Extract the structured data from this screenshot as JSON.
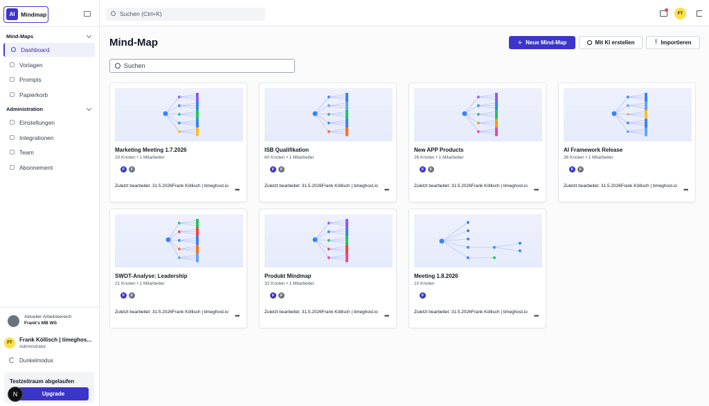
{
  "sidebar": {
    "logo": "AI",
    "app_name": "Mindmap",
    "sections": [
      {
        "title": "Mind-Maps",
        "items": [
          "Dashboard",
          "Vorlagen",
          "Prompts",
          "Papierkorb"
        ]
      },
      {
        "title": "Administration",
        "items": [
          "Einstellungen",
          "Integrationen",
          "Team",
          "Abonnement"
        ]
      }
    ],
    "workspace_label": "Aktueller Arbeitsbereich",
    "workspace_name": "Frank's MB WS",
    "user_initials": "FT",
    "user_name": "Frank Köllisch | timeghos...",
    "user_role": "Administrator",
    "dark_mode": "Dunkelmodus",
    "trial_title": "Testzeitraum abgelaufen",
    "upgrade": "Upgrade",
    "badge": "N"
  },
  "topbar": {
    "search": "Suchen (Ctrl+K)",
    "avatar": "FT"
  },
  "main": {
    "title": "Mind-Map",
    "buttons": [
      "Neue Mind-Map",
      "Mit KI erstellen",
      "Importieren"
    ],
    "search": "Suchen",
    "cards": [
      {
        "title": "Marketing Meeting 1.7.2026",
        "meta": "20 Knoten • 1 Mitarbeiter",
        "avatars": [
          "F",
          "F"
        ],
        "edited": "Zuletzt bearbeitet: 31.5.2026Frank Köllisch | timeghost.io"
      },
      {
        "title": "ISB Qualifikation",
        "meta": "60 Knoten • 1 Mitarbeiter",
        "avatars": [
          "F",
          "F"
        ],
        "edited": "Zuletzt bearbeitet: 31.5.2026Frank Köllisch | timeghost.io"
      },
      {
        "title": "New APP Products",
        "meta": "26 Knoten • 1 Mitarbeiter",
        "avatars": [
          "F",
          "F"
        ],
        "edited": "Zuletzt bearbeitet: 31.5.2026Frank Köllisch | timeghost.io"
      },
      {
        "title": "AI Framework Release",
        "meta": "36 Knoten • 1 Mitarbeiter",
        "avatars": [
          "F",
          "F"
        ],
        "edited": "Zuletzt bearbeitet: 31.5.2026Frank Köllisch | timeghost.io"
      },
      {
        "title": "SWOT-Analyse: Leadership",
        "meta": "21 Knoten • 1 Mitarbeiter",
        "avatars": [
          "F",
          "F"
        ],
        "edited": "Zuletzt bearbeitet: 31.5.2026Frank Köllisch | timeghost.io"
      },
      {
        "title": "Produkt Mindmap",
        "meta": "32 Knoten • 1 Mitarbeiter",
        "avatars": [
          "F",
          "F"
        ],
        "edited": "Zuletzt bearbeitet: 31.5.2026Frank Köllisch | timeghost.io"
      },
      {
        "title": "Meeting 1.8.2026",
        "meta": "10 Knoten",
        "avatars": [
          "F"
        ],
        "edited": "Zuletzt bearbeitet: 31.5.2026Frank Köllisch | timeghost.io"
      }
    ]
  }
}
